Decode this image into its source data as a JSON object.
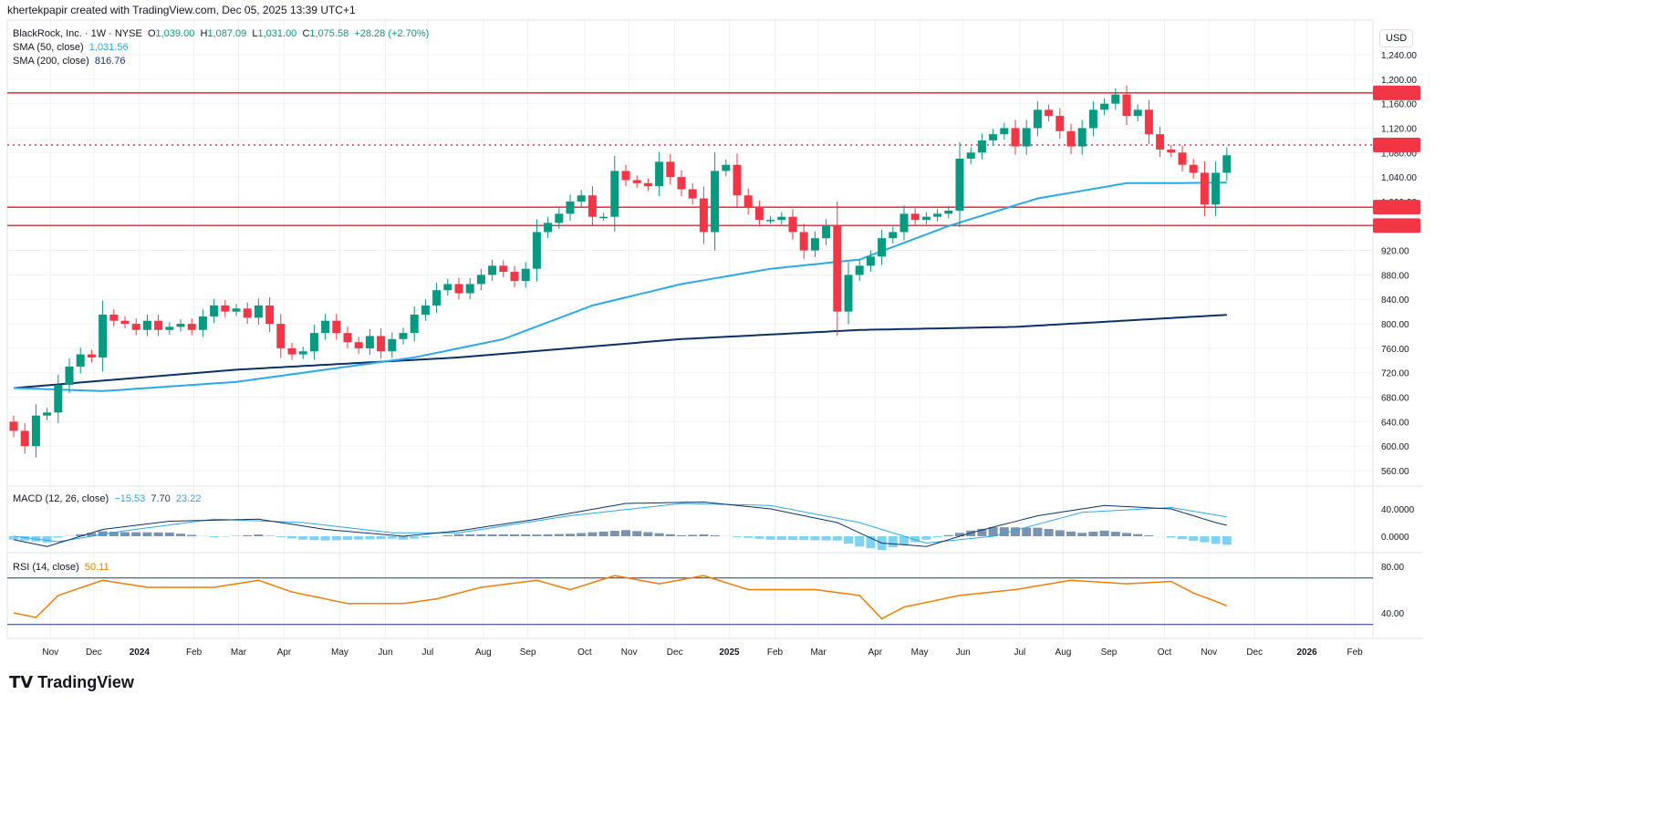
{
  "credit": "khertekpapir created with TradingView.com, Dec 05, 2025 13:39 UTC+1",
  "legend": {
    "symbol": "BlackRock, Inc. · 1W · NYSE",
    "o_label": "O",
    "o": "1,039.00",
    "h_label": "H",
    "h": "1,087.09",
    "l_label": "L",
    "l": "1,031.00",
    "c_label": "C",
    "c": "1,075.58",
    "change": "+28.28 (+2.70%)",
    "sma50_label": "SMA (50, close)",
    "sma50": "1,031.56",
    "sma200_label": "SMA (200, close)",
    "sma200": "816.76"
  },
  "currency": "USD",
  "macd_legend": {
    "label": "MACD (12, 26, close)",
    "hist": "−15.53",
    "macd": "7.70",
    "signal": "23.22"
  },
  "rsi_legend": {
    "label": "RSI (14, close)",
    "value": "50.11"
  },
  "brand": "TradingView",
  "colors": {
    "up": "#089981",
    "down": "#f23645",
    "sma50": "#2aa9e8",
    "sma200": "#0c3165",
    "level": "#f23645",
    "rsi": "#f57c00"
  },
  "chart_data": [
    {
      "type": "candlestick",
      "title": "BlackRock, Inc. 1W",
      "ylim": [
        540,
        1260
      ],
      "yticks": [
        560,
        600,
        640,
        680,
        720,
        760,
        800,
        840,
        880,
        920,
        960,
        1000,
        1040,
        1080,
        1120,
        1160,
        1200,
        1240
      ],
      "closes": [
        625,
        600,
        650,
        655,
        700,
        730,
        750,
        745,
        815,
        805,
        800,
        790,
        805,
        790,
        795,
        800,
        790,
        812,
        830,
        820,
        825,
        810,
        830,
        800,
        760,
        750,
        755,
        785,
        805,
        785,
        770,
        760,
        780,
        755,
        775,
        785,
        815,
        830,
        855,
        865,
        850,
        865,
        880,
        895,
        885,
        870,
        890,
        950,
        965,
        980,
        1000,
        1010,
        975,
        975,
        1050,
        1035,
        1030,
        1025,
        1065,
        1040,
        1020,
        1005,
        950,
        1050,
        1060,
        1010,
        990,
        970,
        970,
        975,
        950,
        920,
        940,
        960,
        820,
        880,
        895,
        910,
        940,
        950,
        980,
        970,
        975,
        980,
        985,
        1070,
        1080,
        1100,
        1110,
        1120,
        1090,
        1120,
        1150,
        1140,
        1115,
        1090,
        1120,
        1150,
        1160,
        1175,
        1140,
        1150,
        1110,
        1085,
        1080,
        1060,
        1047,
        995,
        1047,
        1075.58
      ],
      "first_open": 640,
      "sma50": [
        [
          0,
          695
        ],
        [
          8,
          690
        ],
        [
          20,
          705
        ],
        [
          28,
          725
        ],
        [
          36,
          745
        ],
        [
          44,
          775
        ],
        [
          52,
          830
        ],
        [
          60,
          865
        ],
        [
          68,
          890
        ],
        [
          76,
          905
        ],
        [
          84,
          960
        ],
        [
          92,
          1005
        ],
        [
          100,
          1030
        ],
        [
          104,
          1030
        ],
        [
          111,
          1031.56
        ]
      ],
      "sma200": [
        [
          0,
          695
        ],
        [
          20,
          725
        ],
        [
          40,
          745
        ],
        [
          60,
          775
        ],
        [
          76,
          790
        ],
        [
          90,
          795
        ],
        [
          111,
          816.76
        ]
      ],
      "levels": [
        {
          "value": 1177.58,
          "label": "1,177.58",
          "style": "solid"
        },
        {
          "value": 1092.36,
          "label": "1,092.36",
          "style": "dotted"
        },
        {
          "value": 990.73,
          "label": "990.73",
          "style": "solid"
        },
        {
          "value": 960.62,
          "label": "960.62",
          "style": "solid"
        }
      ],
      "xlabels": [
        [
          3.3,
          "Nov"
        ],
        [
          7.2,
          "Dec"
        ],
        [
          11.3,
          "2024"
        ],
        [
          16.2,
          "Feb"
        ],
        [
          20.2,
          "Mar"
        ],
        [
          24.3,
          "Apr"
        ],
        [
          29.3,
          "May"
        ],
        [
          33.4,
          "Jun"
        ],
        [
          37.2,
          "Jul"
        ],
        [
          42.2,
          "Aug"
        ],
        [
          46.2,
          "Sep"
        ],
        [
          51.3,
          "Oct"
        ],
        [
          55.3,
          "Nov"
        ],
        [
          59.4,
          "Dec"
        ],
        [
          64.3,
          "2025"
        ],
        [
          68.4,
          "Feb"
        ],
        [
          72.3,
          "Mar"
        ],
        [
          77.4,
          "Apr"
        ],
        [
          81.4,
          "May"
        ],
        [
          85.3,
          "Jun"
        ],
        [
          90.4,
          "Jul"
        ],
        [
          94.3,
          "Aug"
        ],
        [
          98.4,
          "Sep"
        ],
        [
          103.4,
          "Oct"
        ],
        [
          107.4,
          "Nov"
        ],
        [
          111.5,
          "Dec"
        ],
        [
          116.2,
          "2026"
        ],
        [
          120.5,
          "Feb"
        ]
      ]
    },
    {
      "type": "line",
      "title": "MACD",
      "yticks": [
        0,
        40
      ],
      "macd": [
        [
          0,
          -5
        ],
        [
          3,
          -15
        ],
        [
          8,
          10
        ],
        [
          14,
          22
        ],
        [
          22,
          25
        ],
        [
          28,
          10
        ],
        [
          35,
          0
        ],
        [
          40,
          8
        ],
        [
          47,
          25
        ],
        [
          55,
          48
        ],
        [
          62,
          50
        ],
        [
          68,
          40
        ],
        [
          74,
          20
        ],
        [
          78,
          -10
        ],
        [
          82,
          -15
        ],
        [
          86,
          5
        ],
        [
          92,
          30
        ],
        [
          98,
          45
        ],
        [
          104,
          40
        ],
        [
          108,
          20
        ],
        [
          111,
          8
        ]
      ],
      "signal": [
        [
          0,
          0
        ],
        [
          4,
          -8
        ],
        [
          10,
          8
        ],
        [
          18,
          25
        ],
        [
          26,
          20
        ],
        [
          34,
          5
        ],
        [
          40,
          5
        ],
        [
          50,
          30
        ],
        [
          60,
          48
        ],
        [
          68,
          45
        ],
        [
          76,
          20
        ],
        [
          82,
          -10
        ],
        [
          88,
          0
        ],
        [
          96,
          35
        ],
        [
          104,
          42
        ],
        [
          111,
          23
        ]
      ]
    },
    {
      "type": "line",
      "title": "RSI",
      "yticks": [
        40,
        80
      ],
      "bands": [
        70,
        30
      ],
      "rsi": [
        [
          0,
          40
        ],
        [
          2,
          36
        ],
        [
          4,
          55
        ],
        [
          8,
          68
        ],
        [
          12,
          62
        ],
        [
          18,
          62
        ],
        [
          22,
          68
        ],
        [
          25,
          58
        ],
        [
          30,
          48
        ],
        [
          35,
          48
        ],
        [
          38,
          52
        ],
        [
          42,
          62
        ],
        [
          47,
          68
        ],
        [
          50,
          60
        ],
        [
          54,
          72
        ],
        [
          58,
          65
        ],
        [
          62,
          72
        ],
        [
          66,
          60
        ],
        [
          72,
          60
        ],
        [
          76,
          55
        ],
        [
          78,
          35
        ],
        [
          80,
          45
        ],
        [
          85,
          55
        ],
        [
          90,
          60
        ],
        [
          95,
          68
        ],
        [
          100,
          65
        ],
        [
          104,
          67
        ],
        [
          106,
          57
        ],
        [
          108,
          50
        ],
        [
          110,
          42
        ],
        [
          111,
          50.11
        ]
      ]
    }
  ]
}
